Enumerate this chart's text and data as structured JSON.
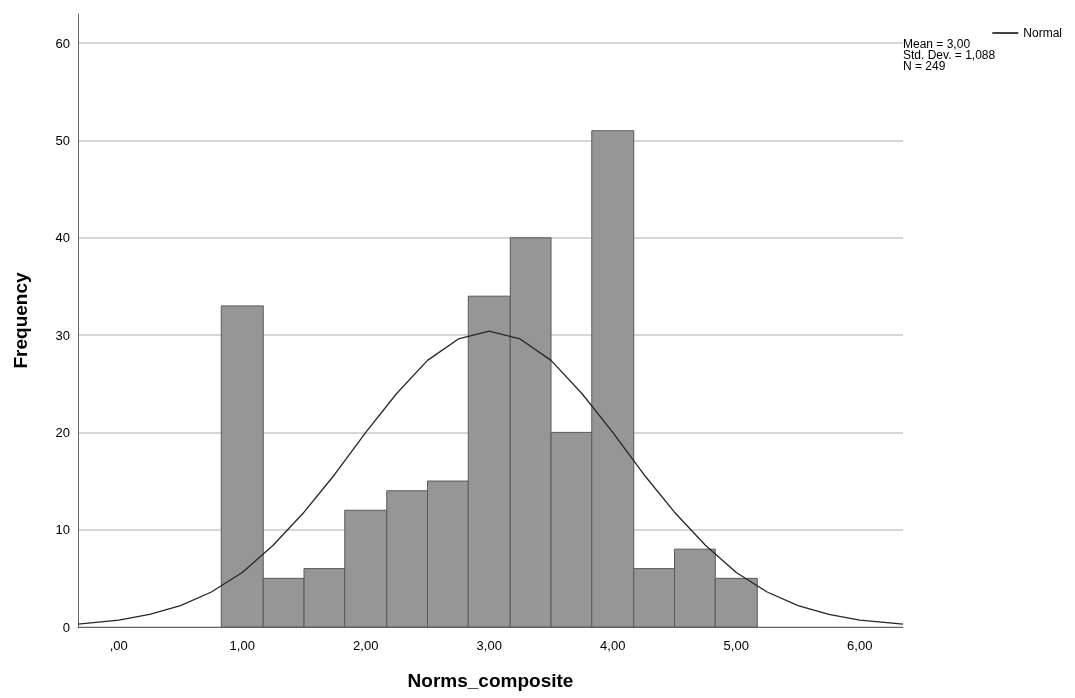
{
  "chart_data": {
    "type": "histogram",
    "xlabel": "Norms_composite",
    "ylabel": "Frequency",
    "bins": [
      0.83,
      1.17,
      1.5,
      1.83,
      2.17,
      2.5,
      2.83,
      3.17,
      3.5,
      3.83,
      4.17,
      4.5,
      4.83,
      5.17
    ],
    "values": [
      33,
      5,
      6,
      12,
      14,
      15,
      34,
      40,
      20,
      51,
      6,
      8,
      5
    ],
    "color": "#969696",
    "series": [
      {
        "type": "line",
        "name": "Normal",
        "color": "#262626",
        "x": [
          -0.33,
          0,
          0.25,
          0.5,
          0.75,
          1,
          1.25,
          1.5,
          1.75,
          2,
          2.25,
          2.5,
          2.75,
          3,
          3.25,
          3.5,
          3.75,
          4,
          4.25,
          4.5,
          4.75,
          5,
          5.25,
          5.5,
          5.75,
          6,
          6.35
        ],
        "values": [
          0.3,
          0.7,
          1.3,
          2.2,
          3.6,
          5.6,
          8.4,
          11.8,
          15.7,
          20.0,
          24.0,
          27.4,
          29.6,
          30.4,
          29.6,
          27.4,
          24.0,
          20.0,
          15.7,
          11.8,
          8.4,
          5.6,
          3.6,
          2.2,
          1.3,
          0.7,
          0.3
        ]
      }
    ],
    "xlim": [
      -0.33,
      6.35
    ],
    "xticks": [
      {
        "value": 0,
        "label": ",00"
      },
      {
        "value": 1,
        "label": "1,00"
      },
      {
        "value": 2,
        "label": "2,00"
      },
      {
        "value": 3,
        "label": "3,00"
      },
      {
        "value": 4,
        "label": "4,00"
      },
      {
        "value": 5,
        "label": "5,00"
      },
      {
        "value": 6,
        "label": "6,00"
      }
    ],
    "ylim": [
      0,
      63
    ],
    "yticks": [
      0,
      10,
      20,
      30,
      40,
      50,
      60
    ],
    "grid": "y",
    "legend": "top right",
    "marker": "none",
    "line_style": "solid",
    "annotations": [
      "Mean = 3,00",
      "Std. Dev. = 1,088",
      "N = 249"
    ]
  }
}
